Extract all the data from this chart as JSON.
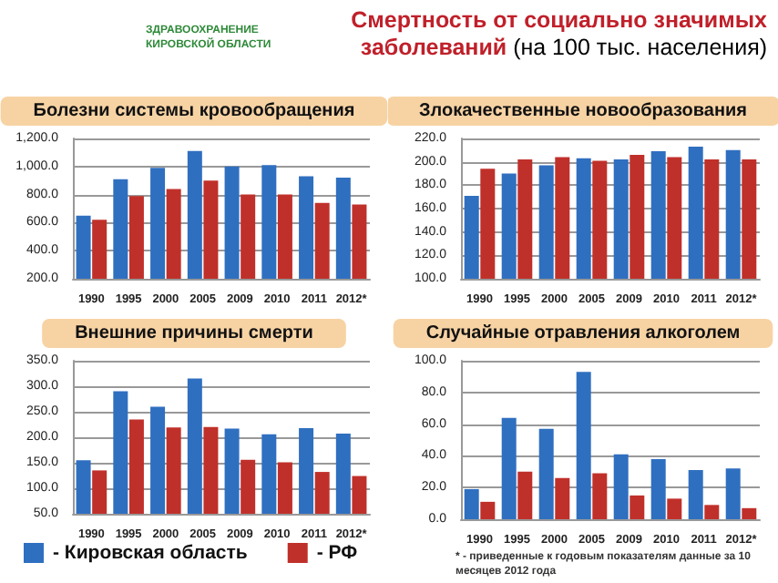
{
  "chart_data": [
    {
      "type": "bar",
      "title": "Болезни системы кровообращения",
      "annotations": [
        "Смертность от социально значимых заболеваний",
        "(на 100 тыс. населения)",
        "ЗДРАВООХРАНЕНИЕ КИРОВСКОЙ ОБЛАСТИ"
      ],
      "categories": [
        "1990",
        "1995",
        "2000",
        "2005",
        "2009",
        "2010",
        "2011",
        "2012*"
      ],
      "series": [
        {
          "color": "#2f6fc0",
          "values": [
            650,
            910,
            990,
            1110,
            1000,
            1010,
            930,
            920
          ]
        },
        {
          "color": "#c0302a",
          "values": [
            620,
            790,
            840,
            900,
            800,
            800,
            740,
            730
          ]
        }
      ],
      "ylim": [
        200,
        1200
      ],
      "yticks": [
        {
          "value": 200,
          "label": "200.0"
        },
        {
          "value": 400,
          "label": "400.0"
        },
        {
          "value": 600,
          "label": "600.0"
        },
        {
          "value": 800,
          "label": "800.0"
        },
        {
          "value": 1000,
          "label": "1,000.0"
        },
        {
          "value": 1200,
          "label": "1,200.0"
        }
      ],
      "grid": "y",
      "legend": false
    },
    {
      "type": "bar",
      "title": "Злокачественные новообразования",
      "categories": [
        "1990",
        "1995",
        "2000",
        "2005",
        "2009",
        "2010",
        "2011",
        "2012*"
      ],
      "series": [
        {
          "color": "#2f6fc0",
          "values": [
            171,
            190,
            197,
            203,
            202,
            209,
            213,
            210
          ]
        },
        {
          "color": "#c0302a",
          "values": [
            194,
            202,
            204,
            201,
            206,
            204,
            202,
            202
          ]
        }
      ],
      "ylim": [
        100,
        220
      ],
      "yticks": [
        {
          "value": 100,
          "label": "100.0"
        },
        {
          "value": 120,
          "label": "120.0"
        },
        {
          "value": 140,
          "label": "140.0"
        },
        {
          "value": 160,
          "label": "160.0"
        },
        {
          "value": 180,
          "label": "180.0"
        },
        {
          "value": 200,
          "label": "200.0"
        },
        {
          "value": 220,
          "label": "220.0"
        }
      ],
      "grid": "y",
      "legend": false
    },
    {
      "type": "bar",
      "title": "Внешние причины смерти",
      "categories": [
        "1990",
        "1995",
        "2000",
        "2005",
        "2009",
        "2010",
        "2011",
        "2012*"
      ],
      "series": [
        {
          "name": "- Кировская область",
          "color": "#2f6fc0",
          "values": [
            155,
            290,
            260,
            315,
            217,
            206,
            218,
            207
          ]
        },
        {
          "name": "- РФ",
          "color": "#c0302a",
          "values": [
            135,
            235,
            219,
            220,
            156,
            151,
            132,
            124
          ]
        }
      ],
      "ylim": [
        50,
        350
      ],
      "yticks": [
        {
          "value": 50,
          "label": "50.0"
        },
        {
          "value": 100,
          "label": "100.0"
        },
        {
          "value": 150,
          "label": "150.0"
        },
        {
          "value": 200,
          "label": "200.0"
        },
        {
          "value": 250,
          "label": "250.0"
        },
        {
          "value": 300,
          "label": "300.0"
        },
        {
          "value": 350,
          "label": "350.0"
        }
      ],
      "grid": "y",
      "legend": "bottom"
    },
    {
      "type": "bar",
      "title": "Случайные отравления алкоголем",
      "annotations": [
        "* - приведенные к годовым показателям данные за 10 месяцев 2012 года"
      ],
      "categories": [
        "1990",
        "1995",
        "2000",
        "2005",
        "2009",
        "2010",
        "2011",
        "2012*"
      ],
      "series": [
        {
          "color": "#2f6fc0",
          "values": [
            19,
            64,
            57,
            93,
            41,
            38,
            31,
            32
          ]
        },
        {
          "color": "#c0302a",
          "values": [
            11,
            30,
            26,
            29,
            15,
            13,
            9,
            7
          ]
        }
      ],
      "ylim": [
        0,
        100
      ],
      "yticks": [
        {
          "value": 0,
          "label": "0.0"
        },
        {
          "value": 20,
          "label": "20.0"
        },
        {
          "value": 40,
          "label": "40.0"
        },
        {
          "value": 60,
          "label": "60.0"
        },
        {
          "value": 80,
          "label": "80.0"
        },
        {
          "value": 100,
          "label": "100.0"
        }
      ],
      "grid": "y",
      "legend": false
    }
  ]
}
